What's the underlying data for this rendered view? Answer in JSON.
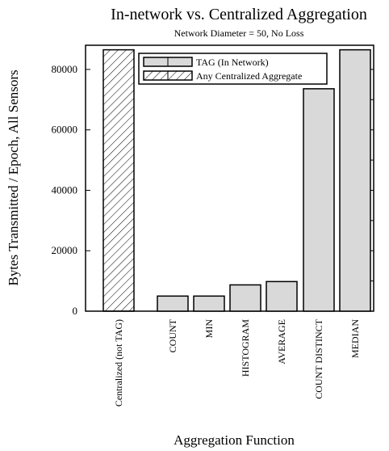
{
  "chart_data": {
    "type": "bar",
    "title": "In-network vs. Centralized Aggregation",
    "subtitle": "Network Diameter = 50, No Loss",
    "xlabel": "Aggregation Function",
    "ylabel": "Bytes Transmitted / Epoch, All Sensors",
    "ylim": [
      0,
      88000
    ],
    "yticks": [
      0,
      20000,
      40000,
      60000,
      80000
    ],
    "categories": [
      "Centralized (not TAG)",
      "COUNT",
      "MIN",
      "HISTOGRAM",
      "AVERAGE",
      "COUNT DISTINCT",
      "MEDIAN"
    ],
    "series": [
      {
        "name": "TAG (In Network)",
        "values": [
          null,
          5000,
          5000,
          8700,
          9800,
          73600,
          86500
        ]
      },
      {
        "name": "Any Centralized Aggregate",
        "values": [
          86500,
          null,
          null,
          null,
          null,
          null,
          null
        ]
      }
    ],
    "legend_position": "top",
    "grid": false,
    "colors": {
      "tag_fill": "#d9d9d9",
      "hatch_fill": "#ffffff",
      "stroke": "#000000"
    }
  }
}
